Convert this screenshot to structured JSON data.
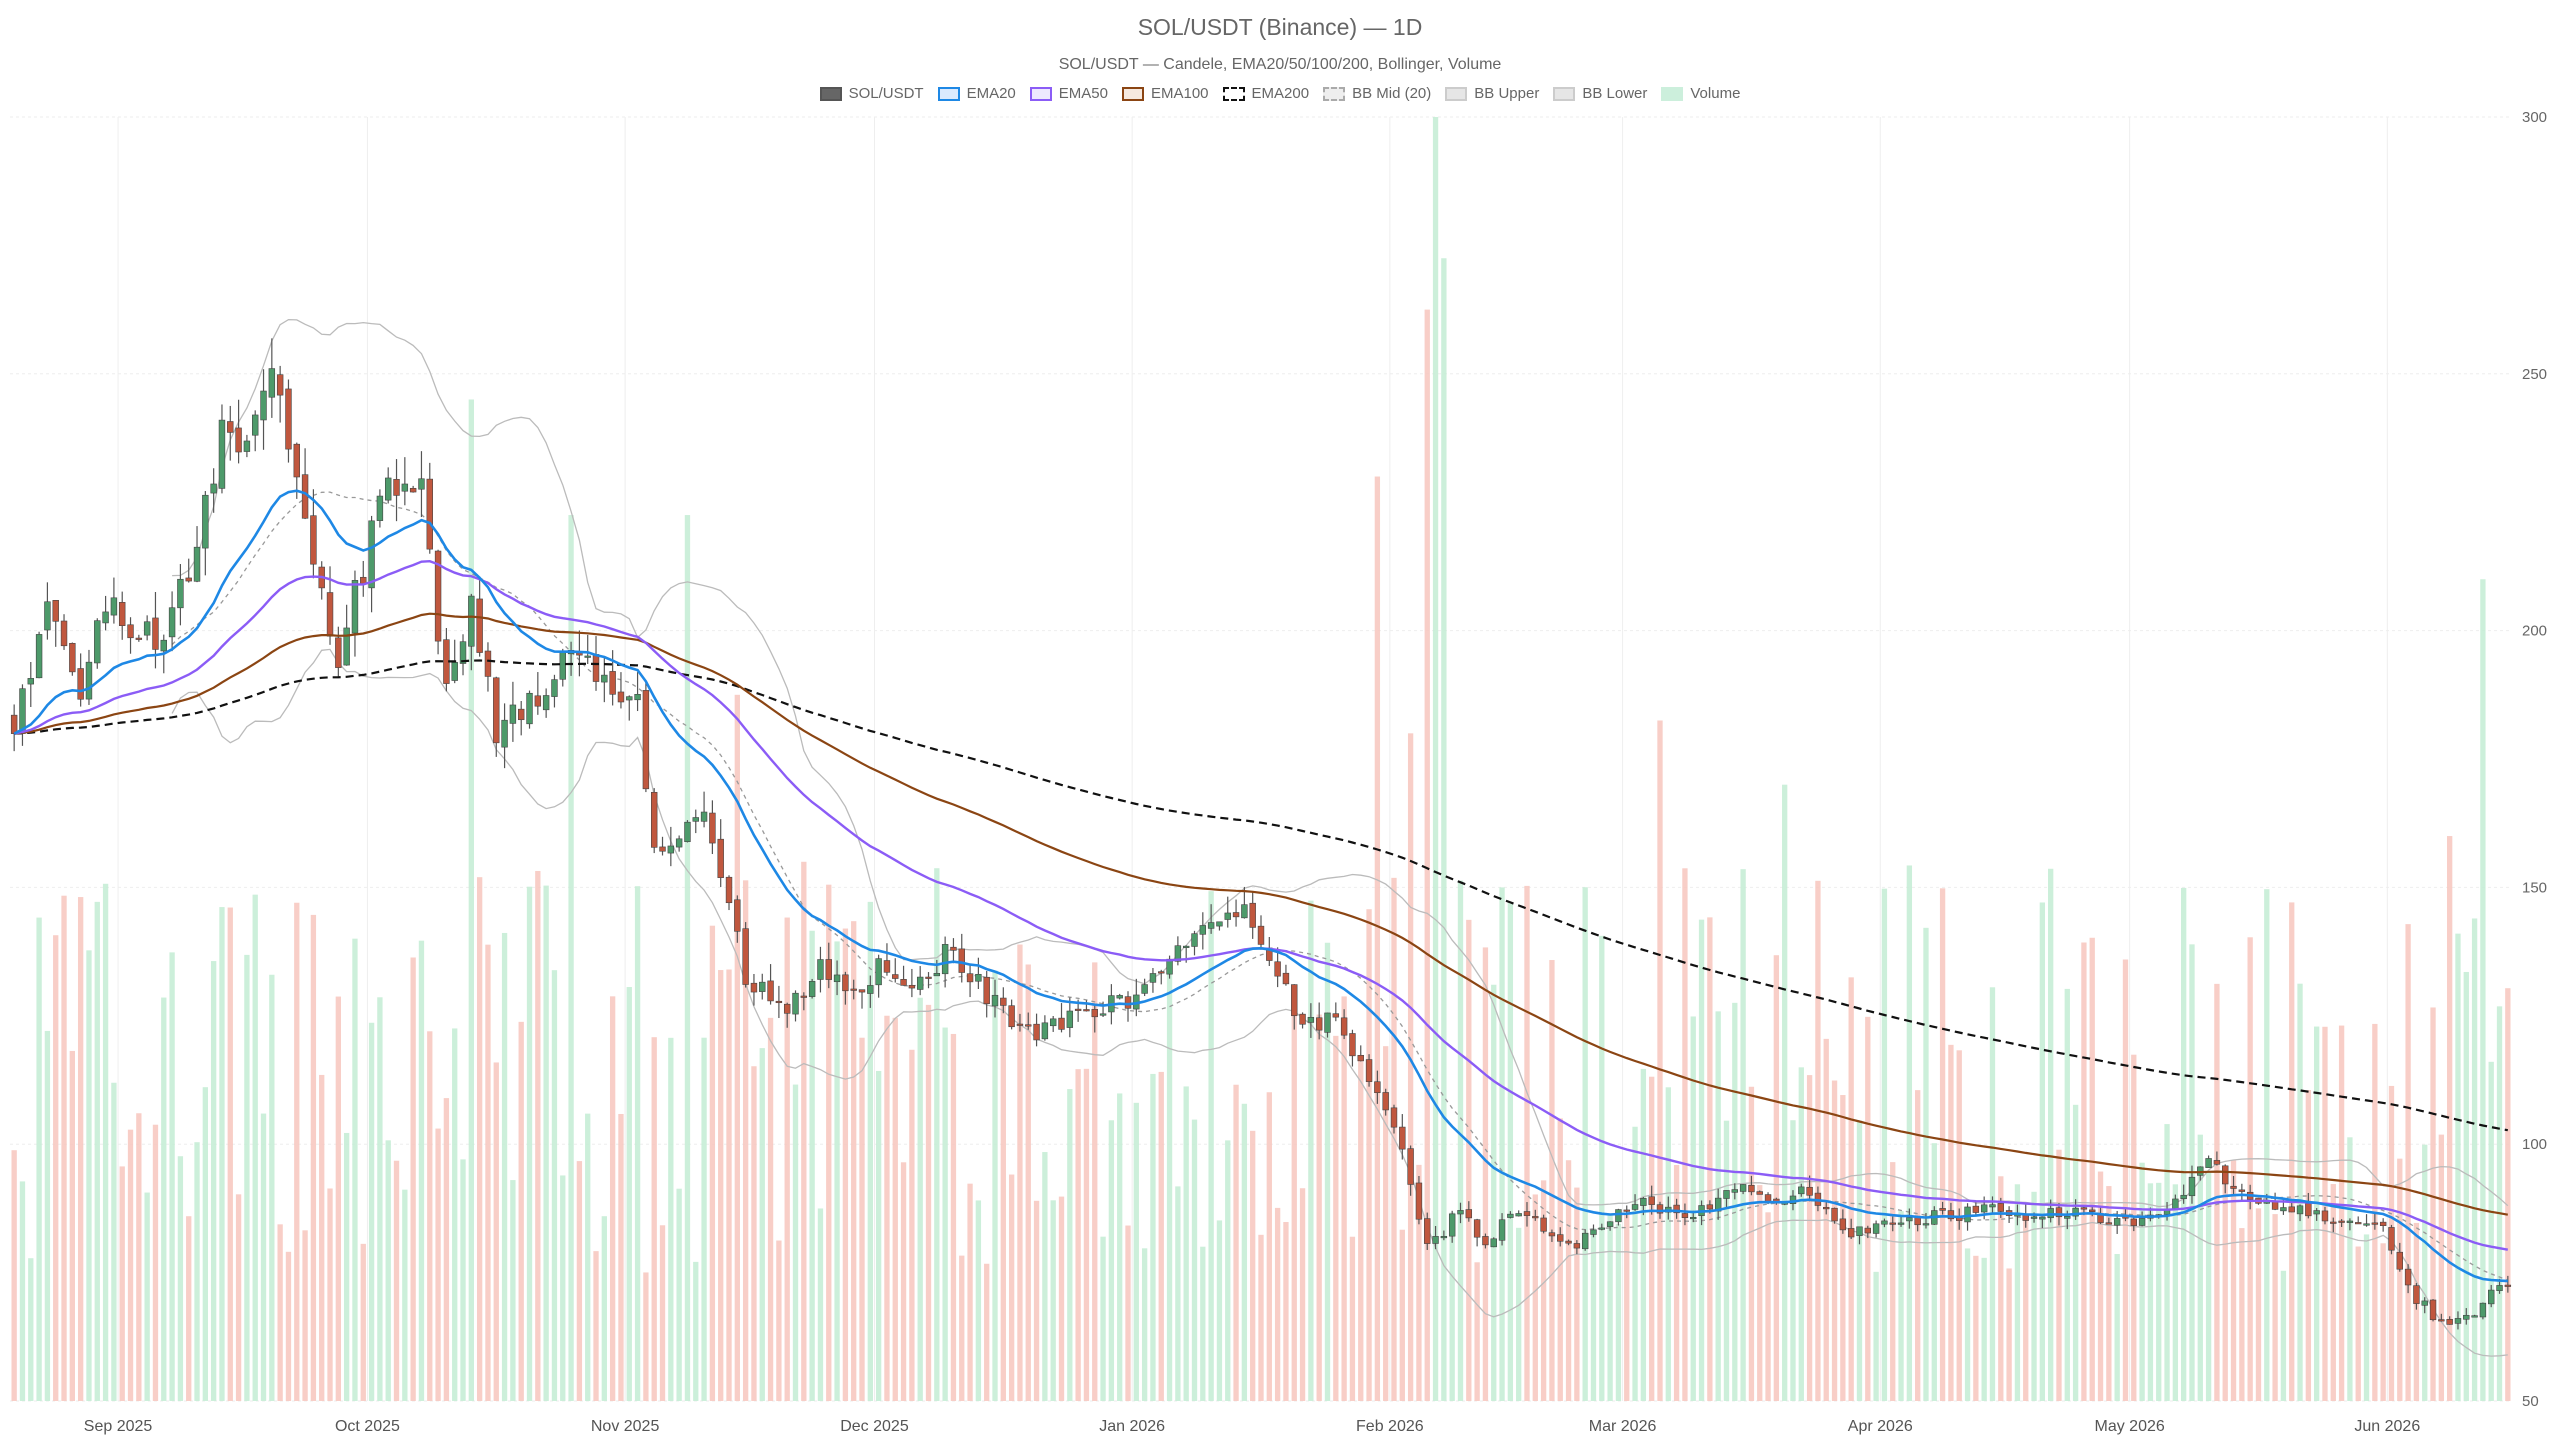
{
  "chart_data": {
    "type": "candlestick",
    "title": "SOL/USDT (Binance) — 1D",
    "subtitle": "SOL/USDT — Candele, EMA20/50/100/200, Bollinger, Volume",
    "legend": [
      {
        "label": "SOL/USDT",
        "fill": "#666666",
        "border": "#555555",
        "style": "solid"
      },
      {
        "label": "EMA20",
        "fill": "#dbeafe",
        "border": "#1e88e5",
        "style": "solid"
      },
      {
        "label": "EMA50",
        "fill": "#ede9fe",
        "border": "#8b5cf6",
        "style": "solid"
      },
      {
        "label": "EMA100",
        "fill": "#f6e9df",
        "border": "#8b4513",
        "style": "solid"
      },
      {
        "label": "EMA200",
        "fill": "#ffffff",
        "border": "#111111",
        "style": "dashed"
      },
      {
        "label": "BB Mid (20)",
        "fill": "#eeeeee",
        "border": "#aaaaaa",
        "style": "dashed"
      },
      {
        "label": "BB Upper",
        "fill": "#e6e6e6",
        "border": "#cccccc",
        "style": "solid"
      },
      {
        "label": "BB Lower",
        "fill": "#e6e6e6",
        "border": "#cccccc",
        "style": "solid"
      },
      {
        "label": "Volume",
        "fill": "#ccefdc",
        "border": "#ccefdc",
        "style": "solid"
      }
    ],
    "x_start": "2025-08-19",
    "x_end": "2026-06-15",
    "x_ticks": [
      {
        "date": "2025-09-01",
        "label": "Sep 2025"
      },
      {
        "date": "2025-10-01",
        "label": "Oct 2025"
      },
      {
        "date": "2025-11-01",
        "label": "Nov 2025"
      },
      {
        "date": "2025-12-01",
        "label": "Dec 2025"
      },
      {
        "date": "2026-01-01",
        "label": "Jan 2026"
      },
      {
        "date": "2026-02-01",
        "label": "Feb 2026"
      },
      {
        "date": "2026-03-01",
        "label": "Mar 2026"
      },
      {
        "date": "2026-04-01",
        "label": "Apr 2026"
      },
      {
        "date": "2026-05-01",
        "label": "May 2026"
      },
      {
        "date": "2026-06-01",
        "label": "Jun 2026"
      }
    ],
    "y_ticks": [
      50,
      100,
      150,
      200,
      250,
      300
    ],
    "ylim": [
      50,
      300
    ],
    "volume_share_of_plot": 0.75,
    "grid": true,
    "legend_position": "top",
    "colors": {
      "up": "#4d9a6a",
      "down": "#c0573e",
      "wick": "#555555",
      "vol_up": "#c3ecd4",
      "vol_down": "#f7c6bd",
      "ema20": "#1e88e5",
      "ema50": "#8b5cf6",
      "ema100": "#8b4513",
      "ema200": "#111111",
      "bb_mid": "#999999",
      "bb_band": "#bbbbbb"
    },
    "close_anchors": [
      [
        "2025-08-19",
        180
      ],
      [
        "2025-08-22",
        200
      ],
      [
        "2025-08-24",
        205
      ],
      [
        "2025-08-27",
        186
      ],
      [
        "2025-08-30",
        207
      ],
      [
        "2025-09-03",
        198
      ],
      [
        "2025-09-06",
        200
      ],
      [
        "2025-09-09",
        210
      ],
      [
        "2025-09-13",
        240
      ],
      [
        "2025-09-16",
        236
      ],
      [
        "2025-09-19",
        248
      ],
      [
        "2025-09-21",
        238
      ],
      [
        "2025-09-25",
        205
      ],
      [
        "2025-09-27",
        195
      ],
      [
        "2025-10-03",
        230
      ],
      [
        "2025-10-07",
        228
      ],
      [
        "2025-10-10",
        188
      ],
      [
        "2025-10-13",
        205
      ],
      [
        "2025-10-16",
        180
      ],
      [
        "2025-10-20",
        185
      ],
      [
        "2025-10-25",
        198
      ],
      [
        "2025-10-28",
        193
      ],
      [
        "2025-11-02",
        185
      ],
      [
        "2025-11-04",
        158
      ],
      [
        "2025-11-10",
        164
      ],
      [
        "2025-11-15",
        133
      ],
      [
        "2025-11-20",
        124
      ],
      [
        "2025-11-24",
        137
      ],
      [
        "2025-11-27",
        128
      ],
      [
        "2025-12-01",
        134
      ],
      [
        "2025-12-05",
        129
      ],
      [
        "2025-12-09",
        137
      ],
      [
        "2025-12-15",
        128
      ],
      [
        "2025-12-19",
        122
      ],
      [
        "2025-12-24",
        124
      ],
      [
        "2025-12-28",
        126
      ],
      [
        "2026-01-02",
        130
      ],
      [
        "2026-01-05",
        136
      ],
      [
        "2026-01-10",
        142
      ],
      [
        "2026-01-14",
        147
      ],
      [
        "2026-01-18",
        132
      ],
      [
        "2026-01-20",
        126
      ],
      [
        "2026-01-25",
        123
      ],
      [
        "2026-01-29",
        112
      ],
      [
        "2026-02-02",
        100
      ],
      [
        "2026-02-05",
        80
      ],
      [
        "2026-02-09",
        87
      ],
      [
        "2026-02-12",
        80
      ],
      [
        "2026-02-15",
        87
      ],
      [
        "2026-02-20",
        83
      ],
      [
        "2026-02-23",
        80
      ],
      [
        "2026-02-27",
        86
      ],
      [
        "2026-03-03",
        88
      ],
      [
        "2026-03-09",
        86
      ],
      [
        "2026-03-15",
        92
      ],
      [
        "2026-03-18",
        89
      ],
      [
        "2026-03-22",
        91
      ],
      [
        "2026-03-27",
        83
      ],
      [
        "2026-04-01",
        84
      ],
      [
        "2026-04-07",
        86
      ],
      [
        "2026-04-14",
        87
      ],
      [
        "2026-04-18",
        86
      ],
      [
        "2026-04-24",
        87
      ],
      [
        "2026-04-30",
        85
      ],
      [
        "2026-05-05",
        87
      ],
      [
        "2026-05-10",
        96
      ],
      [
        "2026-05-15",
        90
      ],
      [
        "2026-05-20",
        88
      ],
      [
        "2026-05-26",
        85
      ],
      [
        "2026-05-31",
        83
      ],
      [
        "2026-06-04",
        70
      ],
      [
        "2026-06-07",
        65
      ],
      [
        "2026-06-10",
        66
      ],
      [
        "2026-06-13",
        71
      ],
      [
        "2026-06-15",
        72
      ]
    ],
    "volume_spikes": [
      [
        "2025-10-13",
        0.78
      ],
      [
        "2025-10-25",
        0.69
      ],
      [
        "2025-11-08",
        0.69
      ],
      [
        "2025-11-14",
        0.55
      ],
      [
        "2026-01-30",
        0.72
      ],
      [
        "2026-02-03",
        0.52
      ],
      [
        "2026-02-05",
        0.85
      ],
      [
        "2026-02-06",
        1.0
      ],
      [
        "2026-02-07",
        0.89
      ],
      [
        "2026-02-14",
        0.4
      ],
      [
        "2026-03-05",
        0.53
      ],
      [
        "2026-03-20",
        0.48
      ],
      [
        "2026-06-08",
        0.44
      ],
      [
        "2026-06-12",
        0.64
      ]
    ]
  }
}
